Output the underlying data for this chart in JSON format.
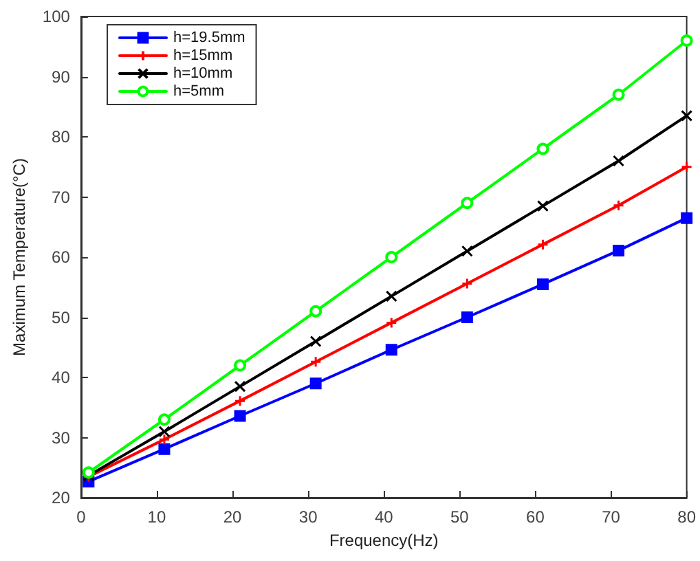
{
  "chart_data": {
    "type": "line",
    "xlabel": "Frequency(Hz)",
    "ylabel": "Maximum Temperature(°C)",
    "x": [
      1,
      11,
      21,
      31,
      41,
      51,
      61,
      71,
      80
    ],
    "xlim": [
      0,
      80
    ],
    "xticks": [
      0,
      10,
      20,
      30,
      40,
      50,
      60,
      70,
      80
    ],
    "ylim": [
      20,
      100
    ],
    "yticks": [
      20,
      30,
      40,
      50,
      60,
      70,
      80,
      90,
      100
    ],
    "grid": false,
    "legend": "top left",
    "line_style": "solid",
    "series": [
      {
        "name": "h=19.5mm",
        "color": "#0000ff",
        "marker": "square",
        "values": [
          22.7,
          28.1,
          33.6,
          39.0,
          44.6,
          50.0,
          55.5,
          61.1,
          66.5
        ]
      },
      {
        "name": "h=15mm",
        "color": "#ff0000",
        "marker": "cross",
        "values": [
          23.5,
          29.7,
          36.1,
          42.6,
          49.1,
          55.6,
          62.1,
          68.6,
          75.0
        ]
      },
      {
        "name": "h=10mm",
        "color": "#000000",
        "marker": "x",
        "values": [
          23.7,
          31.0,
          38.5,
          46.0,
          53.5,
          61.0,
          68.5,
          76.0,
          83.5
        ]
      },
      {
        "name": "h=5mm",
        "color": "#00ff00",
        "marker": "circle",
        "values": [
          24.2,
          33.0,
          42.0,
          51.0,
          60.0,
          69.0,
          78.0,
          87.0,
          96.0
        ]
      }
    ]
  }
}
